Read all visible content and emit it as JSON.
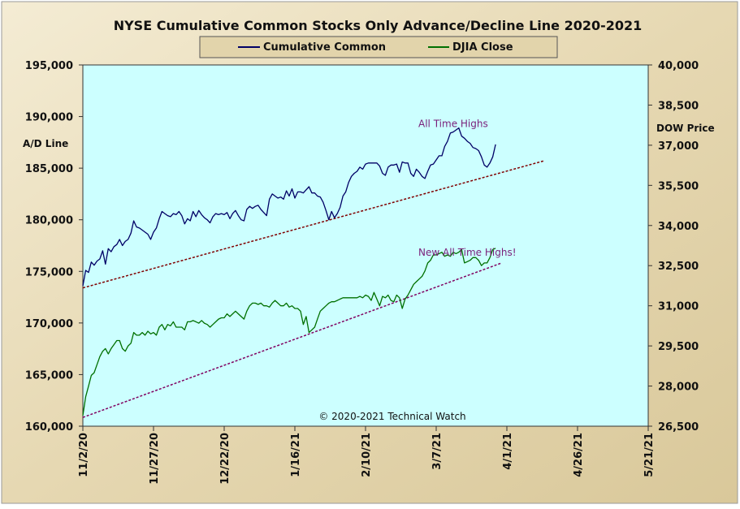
{
  "chart_data": {
    "type": "line",
    "title": "NYSE Cumulative  Common Stocks Only Advance/Decline  Line 2020-2021",
    "y_left_label": "A/D Line",
    "y_right_label": "DOW Price",
    "y_left_ticks": [
      "160,000",
      "165,000",
      "170,000",
      "175,000",
      "180,000",
      "185,000",
      "190,000",
      "195,000"
    ],
    "y_right_ticks": [
      "26,500",
      "28,000",
      "29,500",
      "31,000",
      "32,500",
      "34,000",
      "35,500",
      "37,000",
      "38,500",
      "40,000"
    ],
    "x_ticks": [
      "11/2/20",
      "11/27/20",
      "12/22/20",
      "1/16/21",
      "2/10/21",
      "3/7/21",
      "4/1/21",
      "4/26/21",
      "5/21/21"
    ],
    "ylim_left": [
      160000,
      195000
    ],
    "ylim_right": [
      26500,
      40000
    ],
    "x_range_days": [
      0,
      200
    ],
    "grid": false,
    "legend_position": "top-center",
    "colors": {
      "frame_bg": "#e9dcba",
      "plot_bg": "#ccffff",
      "ad_line": "#000066",
      "djia_line": "#007000",
      "trend_top": "#800000",
      "trend_bottom": "#800060",
      "annotation": "#7a1f7a"
    },
    "series": [
      {
        "name": "Cumulative Common",
        "axis": "left",
        "x": [
          0,
          1,
          2,
          3,
          4,
          5,
          6,
          7,
          8,
          9,
          10,
          11,
          12,
          13,
          14,
          15,
          16,
          17,
          18,
          19,
          20,
          21,
          22,
          23,
          24,
          25,
          26,
          27,
          28,
          29,
          30,
          31,
          32,
          33,
          34,
          35,
          36,
          37,
          38,
          39,
          40,
          41,
          42,
          43,
          44,
          45,
          46,
          47,
          48,
          49,
          50,
          51,
          52,
          53,
          54,
          55,
          56,
          57,
          58,
          59,
          60,
          61,
          62,
          63,
          64,
          65,
          66,
          67,
          68,
          69,
          70,
          71,
          72,
          73,
          74,
          75,
          76,
          77,
          78,
          79,
          80,
          81,
          82,
          83,
          84,
          85,
          86,
          87,
          88,
          89,
          90,
          91,
          92,
          93,
          94,
          95,
          96,
          97,
          98,
          99,
          100,
          101,
          102,
          103,
          104,
          105,
          106,
          107,
          108,
          109,
          110,
          111,
          112,
          113,
          114,
          115,
          116,
          117,
          118,
          119,
          120,
          121,
          122,
          123,
          124,
          125,
          126,
          127,
          128,
          129,
          130,
          131,
          132,
          133,
          134,
          135,
          136,
          137,
          138,
          139,
          140,
          141,
          142,
          143,
          144,
          145,
          146
        ],
        "values": [
          173600,
          175100,
          174900,
          175900,
          175600,
          176000,
          176200,
          177000,
          175700,
          177200,
          176900,
          177400,
          177600,
          178100,
          177500,
          177900,
          178100,
          178700,
          179900,
          179300,
          179200,
          179000,
          178800,
          178600,
          178100,
          178800,
          179200,
          180100,
          180800,
          180600,
          180400,
          180300,
          180600,
          180500,
          180800,
          180400,
          179600,
          180100,
          179900,
          180800,
          180300,
          180900,
          180500,
          180200,
          180000,
          179700,
          180300,
          180600,
          180500,
          180600,
          180500,
          180700,
          180100,
          180600,
          180900,
          180400,
          180000,
          179900,
          181000,
          181300,
          181100,
          181300,
          181400,
          181000,
          180700,
          180400,
          182000,
          182500,
          182300,
          182100,
          182200,
          182000,
          182800,
          182300,
          183000,
          182100,
          182700,
          182700,
          182600,
          182900,
          183200,
          182600,
          182600,
          182300,
          182200,
          181700,
          180900,
          180000,
          180800,
          180200,
          180600,
          181200,
          182300,
          182700,
          183600,
          184200,
          184500,
          184700,
          185100,
          184900,
          185400,
          185500,
          185500,
          185500,
          185500,
          185200,
          184500,
          184300,
          185100,
          185300,
          185300,
          185400,
          184600,
          185600,
          185500,
          185500,
          184500,
          184200,
          184900,
          184600,
          184200,
          184000,
          184700,
          185300,
          185400,
          185800,
          186200,
          186200,
          187100,
          187600,
          188400,
          188500,
          188700,
          188900,
          188100,
          187900,
          187600,
          187400,
          187000,
          186900,
          186700,
          186100,
          185300,
          185100,
          185500,
          186100,
          187300
        ]
      },
      {
        "name": "DJIA Close",
        "axis": "right",
        "x": [
          0,
          1,
          2,
          3,
          4,
          5,
          6,
          7,
          8,
          9,
          10,
          11,
          12,
          13,
          14,
          15,
          16,
          17,
          18,
          19,
          20,
          21,
          22,
          23,
          24,
          25,
          26,
          27,
          28,
          29,
          30,
          31,
          32,
          33,
          34,
          35,
          36,
          37,
          38,
          39,
          40,
          41,
          42,
          43,
          44,
          45,
          46,
          47,
          48,
          49,
          50,
          51,
          52,
          53,
          54,
          55,
          56,
          57,
          58,
          59,
          60,
          61,
          62,
          63,
          64,
          65,
          66,
          67,
          68,
          69,
          70,
          71,
          72,
          73,
          74,
          75,
          76,
          77,
          78,
          79,
          80,
          81,
          82,
          83,
          84,
          85,
          86,
          87,
          88,
          89,
          90,
          91,
          92,
          93,
          94,
          95,
          96,
          97,
          98,
          99,
          100,
          101,
          102,
          103,
          104,
          105,
          106,
          107,
          108,
          109,
          110,
          111,
          112,
          113,
          114,
          115,
          116,
          117,
          118,
          119,
          120,
          121,
          122,
          123,
          124,
          125,
          126,
          127,
          128,
          129,
          130,
          131,
          132,
          133,
          134,
          135,
          136,
          137,
          138,
          139,
          140,
          141,
          142,
          143,
          144,
          145,
          146
        ],
        "values": [
          26900,
          27600,
          28000,
          28400,
          28500,
          28800,
          29100,
          29300,
          29400,
          29200,
          29400,
          29550,
          29700,
          29700,
          29400,
          29300,
          29500,
          29600,
          30000,
          29900,
          29900,
          30000,
          29900,
          30050,
          29950,
          30000,
          29900,
          30200,
          30300,
          30100,
          30300,
          30250,
          30400,
          30200,
          30200,
          30200,
          30100,
          30400,
          30400,
          30450,
          30400,
          30350,
          30450,
          30350,
          30300,
          30200,
          30300,
          30400,
          30500,
          30550,
          30550,
          30700,
          30600,
          30700,
          30800,
          30700,
          30600,
          30500,
          30800,
          31000,
          31100,
          31100,
          31050,
          31100,
          31000,
          31000,
          30950,
          31100,
          31200,
          31100,
          31000,
          31000,
          31100,
          30950,
          31000,
          30900,
          30900,
          30800,
          30300,
          30600,
          30000,
          30100,
          30200,
          30500,
          30800,
          30900,
          31000,
          31100,
          31150,
          31150,
          31200,
          31250,
          31300,
          31300,
          31300,
          31300,
          31300,
          31300,
          31350,
          31300,
          31400,
          31350,
          31200,
          31500,
          31250,
          31000,
          31350,
          31300,
          31400,
          31200,
          31150,
          31400,
          31300,
          30900,
          31250,
          31400,
          31600,
          31800,
          31900,
          32000,
          32100,
          32300,
          32600,
          32700,
          32900,
          32900,
          32950,
          33000,
          32850,
          32900,
          32850,
          33000,
          32950,
          33000,
          33100,
          32600,
          32650,
          32700,
          32800,
          32800,
          32700,
          32500,
          32600,
          32600,
          32800,
          33100,
          33150
        ]
      }
    ],
    "trend_lines": [
      {
        "axis": "left",
        "x": [
          0,
          163
        ],
        "values": [
          173400,
          185700
        ]
      },
      {
        "axis": "left",
        "x": [
          0,
          148
        ],
        "values": [
          160850,
          175800
        ]
      }
    ],
    "annotations": [
      {
        "text": "All Time Highs",
        "x": 131,
        "y": 189000,
        "axis": "left"
      },
      {
        "text": "New All Time Highs!",
        "x": 136,
        "y": 176500,
        "axis": "left"
      }
    ],
    "legend": {
      "entries": [
        "Cumulative Common",
        "DJIA Close"
      ]
    },
    "copyright": "© 2020-2021  Technical  Watch"
  }
}
